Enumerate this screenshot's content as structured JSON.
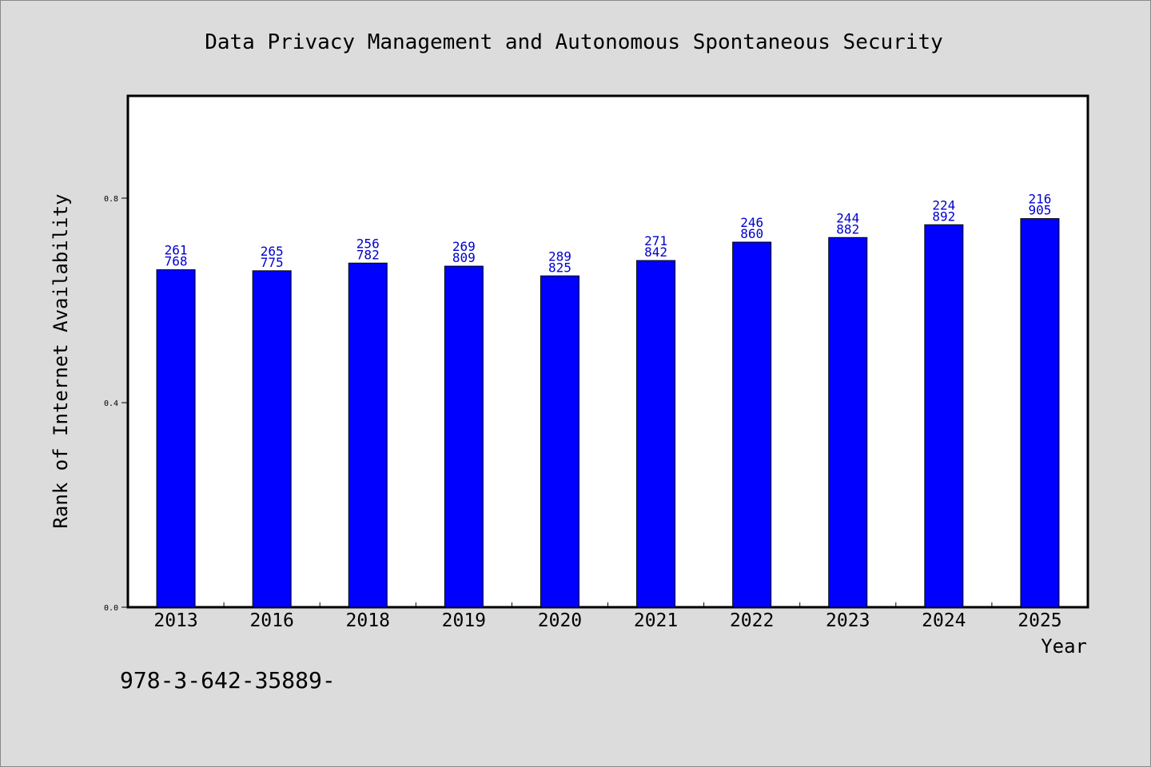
{
  "chart_data": {
    "type": "bar",
    "title": "Data Privacy Management and Autonomous Spontaneous Security",
    "xlabel": "Year",
    "ylabel": "Rank of Internet Availability",
    "categories": [
      "2013",
      "2016",
      "2018",
      "2019",
      "2020",
      "2021",
      "2022",
      "2023",
      "2024",
      "2025"
    ],
    "values": [
      0.66,
      0.658,
      0.673,
      0.667,
      0.648,
      0.678,
      0.714,
      0.723,
      0.748,
      0.76
    ],
    "label_top": [
      "261",
      "265",
      "256",
      "269",
      "289",
      "271",
      "246",
      "244",
      "224",
      "216"
    ],
    "label_bottom": [
      "768",
      "775",
      "782",
      "809",
      "825",
      "842",
      "860",
      "882",
      "892",
      "905"
    ],
    "yticks": [
      0.0,
      0.4,
      0.8
    ],
    "ytick_labels": [
      "0.0",
      "0.4",
      "0.8"
    ],
    "ylim": [
      0,
      1.0
    ],
    "grid": false,
    "legend": "none",
    "bar_color": "#0000ff",
    "label_color": "#0000cc"
  },
  "footnote": "978-3-642-35889-"
}
